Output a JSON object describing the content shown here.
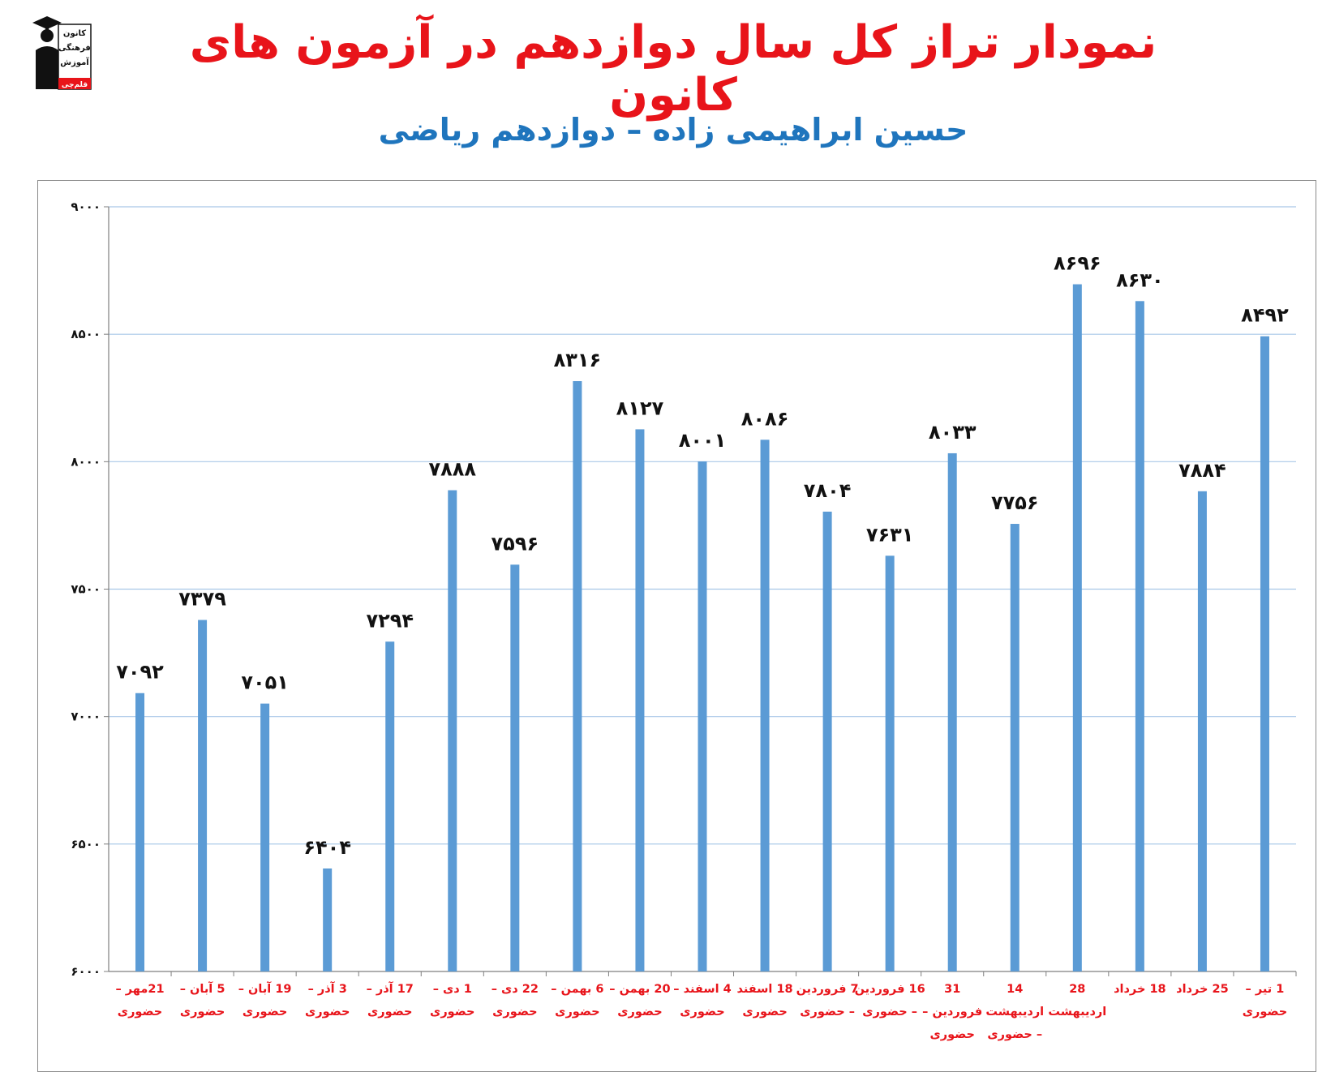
{
  "header": {
    "title": "نمودار تراز کل سال دوازدهم در آزمون های کانون",
    "subtitle": "حسین ابراهیمی زاده – دوازدهم ریاضی"
  },
  "logo": {
    "icon": "graduate-figure-icon",
    "lines": [
      "کانون",
      "فرهنگی",
      "آموزش",
      "قلم‌چی"
    ]
  },
  "colors": {
    "title": "#e8141a",
    "subtitle": "#1f75bd",
    "bar": "#5b9bd5",
    "gridline": "#a9c8e8",
    "category_label": "#e8141a"
  },
  "chart_data": {
    "type": "bar",
    "title": "",
    "xlabel": "",
    "ylabel": "",
    "ylim": [
      6000,
      9000
    ],
    "yticks": [
      6000,
      6500,
      7000,
      7500,
      8000,
      8500,
      9000
    ],
    "ytick_labels": [
      "۶۰۰۰",
      "۶۵۰۰",
      "۷۰۰۰",
      "۷۵۰۰",
      "۸۰۰۰",
      "۸۵۰۰",
      "۹۰۰۰"
    ],
    "grid": true,
    "legend": "none",
    "categories": [
      [
        "21مهر –",
        "حضوری"
      ],
      [
        "5 آبان –",
        "حضوری"
      ],
      [
        "19 آبان –",
        "حضوری"
      ],
      [
        "3 آذر –",
        "حضوری"
      ],
      [
        "17 آذر –",
        "حضوری"
      ],
      [
        "1 دی –",
        "حضوری"
      ],
      [
        "22 دی –",
        "حضوری"
      ],
      [
        "6 بهمن –",
        "حضوری"
      ],
      [
        "20 بهمن –",
        "حضوری"
      ],
      [
        "4 اسفند –",
        "حضوری"
      ],
      [
        "18 اسفند",
        "حضوری"
      ],
      [
        "7 فروردین",
        "– حضوری"
      ],
      [
        "16 فروردین",
        "– حضوری"
      ],
      [
        "31",
        "فروردین –",
        "حضوری"
      ],
      [
        "14",
        "اردیبهشت",
        "– حضوری"
      ],
      [
        "28",
        "اردیبهشت"
      ],
      [
        "18 خرداد"
      ],
      [
        "25 خرداد"
      ],
      [
        "1 تیر –",
        "حضوری"
      ]
    ],
    "values": [
      7092,
      7379,
      7051,
      6404,
      7294,
      7888,
      7596,
      8316,
      8127,
      8001,
      8086,
      7804,
      7631,
      8033,
      7756,
      8696,
      8630,
      7884,
      8492
    ],
    "value_labels": [
      "۷۰۹۲",
      "۷۳۷۹",
      "۷۰۵۱",
      "۶۴۰۴",
      "۷۲۹۴",
      "۷۸۸۸",
      "۷۵۹۶",
      "۸۳۱۶",
      "۸۱۲۷",
      "۸۰۰۱",
      "۸۰۸۶",
      "۷۸۰۴",
      "۷۶۳۱",
      "۸۰۳۳",
      "۷۷۵۶",
      "۸۶۹۶",
      "۸۶۳۰",
      "۷۸۸۴",
      "۸۴۹۲"
    ]
  }
}
